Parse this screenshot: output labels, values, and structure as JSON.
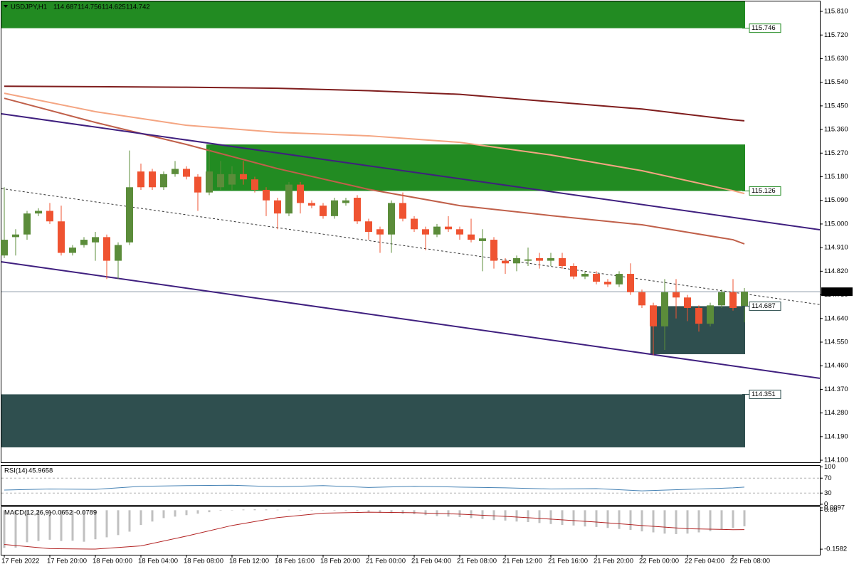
{
  "chart_data": [
    {
      "type": "candlestick",
      "title": "USDJPY,H1",
      "categories": [
        "17 Feb 2022",
        null,
        null,
        null,
        "17 Feb 20:00",
        null,
        null,
        null,
        "18 Feb 00:00",
        null,
        null,
        null,
        "18 Feb 04:00",
        null,
        null,
        null,
        "18 Feb 08:00",
        null,
        null,
        null,
        "18 Feb 12:00",
        null,
        null,
        null,
        "18 Feb 16:00",
        null,
        null,
        null,
        "18 Feb 20:00",
        null,
        null,
        null,
        "21 Feb 00:00",
        null,
        null,
        null,
        "21 Feb 04:00",
        null,
        null,
        null,
        "21 Feb 08:00",
        null,
        null,
        null,
        "21 Feb 12:00",
        null,
        null,
        null,
        "21 Feb 16:00",
        null,
        null,
        null,
        "21 Feb 20:00",
        null,
        null,
        null,
        "22 Feb 00:00",
        null,
        null,
        null,
        "22 Feb 04:00",
        null,
        null,
        null,
        "22 Feb 08:00",
        null
      ],
      "open": [
        114.88,
        114.95,
        114.96,
        115.04,
        115.05,
        115.01,
        114.89,
        114.92,
        114.93,
        114.95,
        114.86,
        114.93,
        115.2,
        115.2,
        115.14,
        115.19,
        115.21,
        115.18,
        115.12,
        115.14,
        115.15,
        115.19,
        115.17,
        115.13,
        115.09,
        115.04,
        115.15,
        115.08,
        115.07,
        115.03,
        115.08,
        115.1,
        115.01,
        114.98,
        114.96,
        115.08,
        115.02,
        114.98,
        114.96,
        114.99,
        114.98,
        114.96,
        114.935,
        114.94,
        114.86,
        114.85,
        114.86,
        114.87,
        114.86,
        114.87,
        114.84,
        114.8,
        114.81,
        114.78,
        114.77,
        114.81,
        114.74,
        114.69,
        114.61,
        114.74,
        114.72,
        114.68,
        114.62,
        114.69,
        114.74,
        114.687
      ],
      "high": [
        115.14,
        114.98,
        115.05,
        115.06,
        115.08,
        115.07,
        114.92,
        114.95,
        114.97,
        114.96,
        114.93,
        115.28,
        115.23,
        115.21,
        115.2,
        115.24,
        115.22,
        115.19,
        115.29,
        115.24,
        115.22,
        115.24,
        115.18,
        115.14,
        115.1,
        115.16,
        115.16,
        115.09,
        115.08,
        115.1,
        115.1,
        115.11,
        115.02,
        114.99,
        115.09,
        115.12,
        115.03,
        114.99,
        115,
        115.03,
        114.99,
        115.02,
        114.98,
        114.95,
        114.87,
        114.88,
        114.91,
        114.89,
        114.89,
        114.89,
        114.85,
        114.82,
        114.82,
        114.79,
        114.82,
        114.85,
        114.75,
        114.7,
        114.79,
        114.79,
        114.73,
        114.69,
        114.7,
        114.75,
        114.79,
        114.756
      ],
      "low": [
        114.87,
        114.88,
        114.94,
        115.03,
        115,
        114.88,
        114.88,
        114.91,
        114.86,
        114.79,
        114.79,
        114.92,
        115.13,
        115.13,
        115.13,
        115.18,
        115.17,
        115.05,
        115.11,
        115.13,
        115.13,
        115.15,
        115.12,
        115.03,
        114.98,
        115.03,
        115.04,
        115.06,
        115.02,
        115.02,
        115.07,
        115,
        114.94,
        114.89,
        114.89,
        115.01,
        114.97,
        114.9,
        114.95,
        114.97,
        114.94,
        114.93,
        114.82,
        114.83,
        114.81,
        114.82,
        114.84,
        114.83,
        114.84,
        114.83,
        114.79,
        114.79,
        114.77,
        114.76,
        114.76,
        114.73,
        114.68,
        114.5,
        114.52,
        114.64,
        114.63,
        114.59,
        114.61,
        114.68,
        114.67,
        114.625
      ],
      "close": [
        114.94,
        114.96,
        115.04,
        115.05,
        115.01,
        114.89,
        114.91,
        114.94,
        114.95,
        114.86,
        114.92,
        115.14,
        115.14,
        115.14,
        115.19,
        115.21,
        115.18,
        115.12,
        115.2,
        115.19,
        115.19,
        115.17,
        115.13,
        115.09,
        115.04,
        115.15,
        115.08,
        115.07,
        115.03,
        115.09,
        115.09,
        115.01,
        114.97,
        114.96,
        115.08,
        115.02,
        114.98,
        114.96,
        114.99,
        114.98,
        114.96,
        114.94,
        114.945,
        114.86,
        114.85,
        114.87,
        114.865,
        114.86,
        114.87,
        114.84,
        114.8,
        114.81,
        114.78,
        114.77,
        114.81,
        114.74,
        114.69,
        114.61,
        114.74,
        114.72,
        114.68,
        114.62,
        114.69,
        114.74,
        114.68,
        114.742
      ],
      "up_color": "#5b8c3a",
      "down_color": "#ef5331",
      "price_line_color": "#8c9aa6",
      "ylim": [
        114.092,
        115.848
      ],
      "yticks": [
        {
          "value": 115.81,
          "label": "115.810"
        },
        {
          "value": 115.72,
          "label": "115.720"
        },
        {
          "value": 115.63,
          "label": "115.630"
        },
        {
          "value": 115.54,
          "label": "115.540"
        },
        {
          "value": 115.45,
          "label": "115.450"
        },
        {
          "value": 115.36,
          "label": "115.360"
        },
        {
          "value": 115.27,
          "label": "115.270"
        },
        {
          "value": 115.18,
          "label": "115.180"
        },
        {
          "value": 115.09,
          "label": "115.090"
        },
        {
          "value": 115,
          "label": "115.000"
        },
        {
          "value": 114.91,
          "label": "114.910"
        },
        {
          "value": 114.82,
          "label": "114.820"
        },
        {
          "value": 114.73,
          "label": "114.730"
        },
        {
          "value": 114.64,
          "label": "114.640"
        },
        {
          "value": 114.55,
          "label": "114.550"
        },
        {
          "value": 114.46,
          "label": "114.460"
        },
        {
          "value": 114.37,
          "label": "114.370"
        },
        {
          "value": 114.28,
          "label": "114.280"
        },
        {
          "value": 114.19,
          "label": "114.190"
        },
        {
          "value": 114.1,
          "label": "114.100"
        }
      ],
      "zones": [
        {
          "level": 115.746,
          "extent": 115.848,
          "start": 0,
          "color": "#228b22"
        },
        {
          "level": 115.126,
          "extent": 115.303,
          "start": 18,
          "color": "#228b22"
        },
        {
          "level": 114.687,
          "extent": 114.504,
          "start": 57,
          "color": "#2f4f4f"
        },
        {
          "level": 114.351,
          "extent": 114.149,
          "start": 0,
          "color": "#2f4f4f"
        }
      ],
      "lines": [
        {
          "color": "#7f1d1d",
          "x": [
            0,
            8,
            16,
            24,
            32,
            40,
            48,
            56,
            64,
            65
          ],
          "values": [
            115.525,
            115.523,
            115.521,
            115.517,
            115.508,
            115.494,
            115.466,
            115.438,
            115.397,
            115.393
          ]
        },
        {
          "color": "#f4a582",
          "x": [
            0,
            8,
            16,
            24,
            32,
            40,
            48,
            56,
            64,
            65
          ],
          "values": [
            115.498,
            115.428,
            115.376,
            115.349,
            115.336,
            115.311,
            115.263,
            115.203,
            115.127,
            115.116
          ]
        },
        {
          "color": "#c0604a",
          "x": [
            0,
            8,
            16,
            24,
            32,
            40,
            48,
            56,
            64,
            65
          ],
          "values": [
            115.479,
            115.387,
            115.303,
            115.211,
            115.132,
            115.07,
            115.032,
            114.997,
            114.94,
            114.924
          ]
        },
        {
          "color": "#3f1f7f",
          "x": [
            -0.25,
            71.625
          ],
          "values": [
            115.42,
            114.978
          ]
        },
        {
          "color": "#3f1f7f",
          "x": [
            -0.25,
            71.625
          ],
          "values": [
            114.856,
            114.412
          ]
        },
        {
          "color": "#333333",
          "dash": true,
          "x": [
            -0.25,
            71.625
          ],
          "values": [
            115.135,
            114.693
          ]
        }
      ]
    },
    {
      "type": "line",
      "title": "RSI(14)",
      "color": "#4682b4",
      "x": [
        0,
        4,
        8,
        12,
        16,
        20,
        24,
        28,
        32,
        36,
        40,
        44,
        48,
        52,
        56,
        60,
        64,
        65
      ],
      "values": [
        38,
        41,
        40,
        48,
        50,
        51,
        47,
        50,
        45,
        48,
        46,
        44,
        41,
        42,
        36,
        40,
        44,
        45.9658
      ],
      "ylim": [
        0,
        100
      ],
      "yticks": [
        100,
        70,
        30,
        0
      ]
    },
    {
      "type": "bar",
      "title": "MACD(12,26,9)",
      "color": "#c0c0c0",
      "values": [
        -0.153,
        -0.152,
        -0.13,
        -0.125,
        -0.12,
        -0.125,
        -0.124,
        -0.128,
        -0.118,
        -0.11,
        -0.101,
        -0.087,
        -0.06,
        -0.046,
        -0.032,
        -0.026,
        -0.02,
        -0.014,
        -0.008,
        -0.002,
        0.001,
        0.003,
        0.004,
        0.003,
        0.002,
        0.002,
        0.001,
        0,
        -0.001,
        -0.002,
        -0.002,
        -0.004,
        -0.006,
        -0.01,
        -0.012,
        -0.014,
        -0.016,
        -0.02,
        -0.024,
        -0.026,
        -0.028,
        -0.032,
        -0.036,
        -0.04,
        -0.042,
        -0.046,
        -0.048,
        -0.052,
        -0.056,
        -0.06,
        -0.062,
        -0.066,
        -0.068,
        -0.072,
        -0.076,
        -0.08,
        -0.086,
        -0.09,
        -0.095,
        -0.097,
        -0.095,
        -0.09,
        -0.085,
        -0.078,
        -0.072,
        -0.0652
      ],
      "signal": {
        "color": "#b22222",
        "x": [
          0,
          4,
          8,
          12,
          16,
          20,
          24,
          28,
          32,
          36,
          40,
          44,
          48,
          52,
          56,
          60,
          64,
          65
        ],
        "values": [
          -0.139,
          -0.156,
          -0.158,
          -0.145,
          -0.105,
          -0.062,
          -0.03,
          -0.012,
          -0.008,
          -0.01,
          -0.016,
          -0.025,
          -0.036,
          -0.048,
          -0.062,
          -0.075,
          -0.079,
          -0.0789
        ]
      },
      "ylim": [
        -0.181,
        0.0126
      ],
      "yticks": [
        0.0097,
        {
          "value": 0,
          "label": "0.00"
        },
        -0.1582
      ]
    }
  ]
}
